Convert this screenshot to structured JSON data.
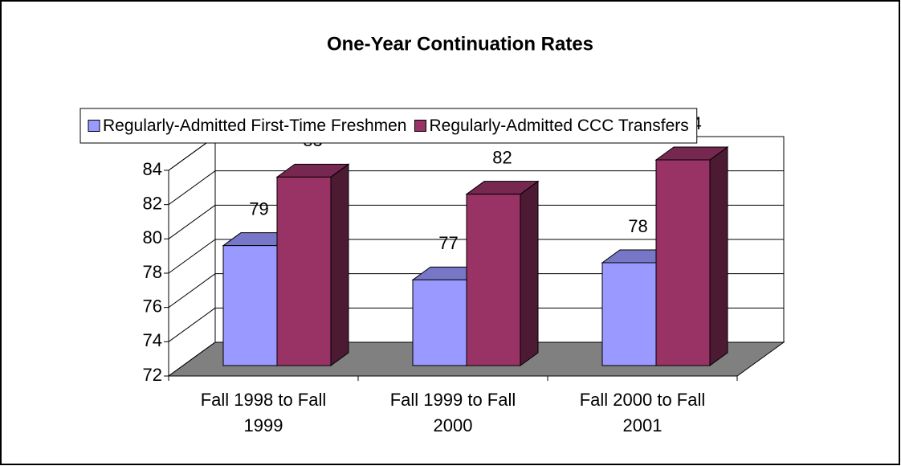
{
  "chart_data": {
    "type": "bar3d",
    "title": "One-Year Continuation Rates",
    "categories": [
      "Fall 1998 to Fall 1999",
      "Fall 1999 to Fall 2000",
      "Fall 2000 to Fall 2001"
    ],
    "series": [
      {
        "name": "Regularly-Admitted First-Time Freshmen",
        "color": "#9999ff",
        "values": [
          79,
          77,
          78
        ]
      },
      {
        "name": "Regularly-Admitted CCC Transfers",
        "color": "#993366",
        "values": [
          83,
          82,
          84
        ]
      }
    ],
    "ylim": [
      72,
      84
    ],
    "yticks": [
      72,
      74,
      76,
      78,
      80,
      82,
      84
    ],
    "grid": true,
    "legend": "top"
  }
}
